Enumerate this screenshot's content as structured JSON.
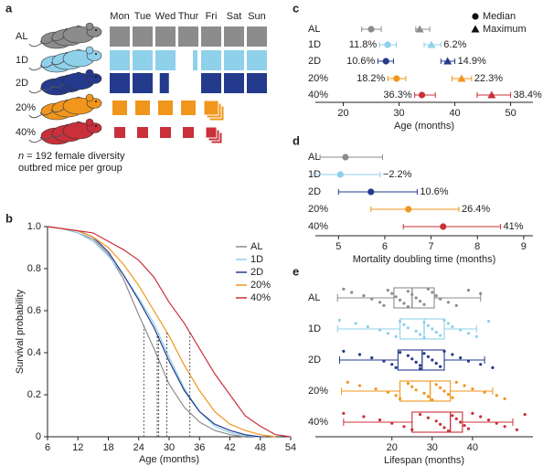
{
  "panel_a": {
    "label": "a",
    "days": [
      "Mon",
      "Tue",
      "Wed",
      "Thur",
      "Fri",
      "Sat",
      "Sun"
    ],
    "groups": [
      {
        "label": "AL",
        "color": "#8c8c8c"
      },
      {
        "label": "1D",
        "color": "#8fd0ea"
      },
      {
        "label": "2D",
        "color": "#243a8c"
      },
      {
        "label": "20%",
        "color": "#f0961c"
      },
      {
        "label": "40%",
        "color": "#c9303a"
      }
    ],
    "note_var": "n",
    "note_rest": " = 192 female diversity",
    "note_line2": "outbred mice per group"
  },
  "chart_data": [
    {
      "panel_label": "b",
      "type": "line",
      "xlabel": "Age (months)",
      "ylabel": "Survival probability",
      "x": [
        6,
        9,
        12,
        15,
        18,
        21,
        24,
        27,
        30,
        33,
        36,
        39,
        42,
        45,
        48,
        51,
        54
      ],
      "xlim": [
        6,
        54
      ],
      "xticks": [
        6,
        12,
        18,
        24,
        30,
        36,
        42,
        48,
        54
      ],
      "ylim": [
        0,
        1
      ],
      "yticks": [
        0,
        0.2,
        0.4,
        0.6,
        0.8,
        {
          "value": 1,
          "label": "1.0"
        }
      ],
      "series": [
        {
          "name": "AL",
          "color": "#8c8c8c",
          "values": [
            1,
            0.99,
            0.97,
            0.94,
            0.87,
            0.75,
            0.58,
            0.42,
            0.25,
            0.14,
            0.07,
            0.03,
            0.01,
            0,
            null,
            null,
            null
          ]
        },
        {
          "name": "1D",
          "color": "#8fd0ea",
          "values": [
            1,
            0.99,
            0.97,
            0.93,
            0.86,
            0.77,
            0.66,
            0.54,
            0.38,
            0.23,
            0.12,
            0.05,
            0.02,
            0.005,
            0,
            null,
            null
          ]
        },
        {
          "name": "2D",
          "color": "#243a8c",
          "values": [
            1,
            0.99,
            0.98,
            0.95,
            0.88,
            0.77,
            0.65,
            0.52,
            0.36,
            0.22,
            0.12,
            0.06,
            0.03,
            0.01,
            0,
            null,
            null
          ]
        },
        {
          "name": "20%",
          "color": "#f0961c",
          "values": [
            1,
            0.99,
            0.98,
            0.95,
            0.9,
            0.82,
            0.72,
            0.6,
            0.48,
            0.34,
            0.22,
            0.12,
            0.06,
            0.03,
            0.01,
            0,
            null
          ]
        },
        {
          "name": "40%",
          "color": "#c9303a",
          "values": [
            1,
            0.99,
            0.98,
            0.97,
            0.93,
            0.89,
            0.84,
            0.76,
            0.64,
            0.54,
            0.42,
            0.3,
            0.2,
            0.1,
            0.05,
            0.01,
            0
          ]
        }
      ]
    },
    {
      "panel_label": "c",
      "type": "dot",
      "xlabel": "Age (months)",
      "categories": [
        "AL",
        "1D",
        "2D",
        "20%",
        "40%"
      ],
      "colors": [
        "#8c8c8c",
        "#8fd0ea",
        "#243a8c",
        "#f0961c",
        "#c9303a"
      ],
      "xlim": [
        15,
        54
      ],
      "xticks": [
        20,
        30,
        40,
        50
      ],
      "series": [
        {
          "name": "Median",
          "marker": "circle",
          "values": [
            25,
            27.95,
            27.65,
            29.55,
            34.1
          ],
          "lower": [
            23.3,
            26.5,
            26.2,
            28,
            32.8
          ],
          "upper": [
            26.8,
            29.5,
            29,
            31.2,
            36.5
          ],
          "annotations": [
            null,
            "11.8%",
            "10.6%",
            "18.2%",
            "36.3%"
          ]
        },
        {
          "name": "Maximum",
          "marker": "triangle",
          "values": [
            33.7,
            35.8,
            38.7,
            41.2,
            46.6
          ],
          "lower": [
            33,
            34.5,
            37.5,
            39.5,
            44
          ],
          "upper": [
            35.5,
            37.5,
            40,
            43,
            50
          ],
          "annotations": [
            null,
            "6.2%",
            "14.9%",
            "22.3%",
            "38.4%"
          ]
        }
      ]
    },
    {
      "panel_label": "d",
      "type": "dot",
      "xlabel": "Mortality doubling time (months)",
      "categories": [
        "AL",
        "1D",
        "2D",
        "20%",
        "40%"
      ],
      "colors": [
        "#8c8c8c",
        "#8fd0ea",
        "#243a8c",
        "#f0961c",
        "#c9303a"
      ],
      "xlim": [
        4.5,
        9.2
      ],
      "xticks": [
        5,
        6,
        7,
        8,
        9
      ],
      "values": [
        5.15,
        5.04,
        5.7,
        6.51,
        7.26
      ],
      "lower": [
        4.6,
        4.45,
        5.0,
        5.7,
        6.4
      ],
      "upper": [
        5.95,
        5.9,
        6.7,
        7.6,
        8.5
      ],
      "annotations": [
        null,
        "−2.2%",
        "10.6%",
        "26.4%",
        "41%"
      ]
    },
    {
      "panel_label": "e",
      "type": "box",
      "xlabel": "Lifespan (months)",
      "categories": [
        "AL",
        "1D",
        "2D",
        "20%",
        "40%"
      ],
      "colors": [
        "#8c8c8c",
        "#8fd0ea",
        "#243a8c",
        "#f0961c",
        "#c9303a"
      ],
      "xlim": [
        1,
        55
      ],
      "xticks": [
        20,
        30,
        40
      ],
      "whislo": [
        6.5,
        6.5,
        7,
        7.5,
        8
      ],
      "q1": [
        20.5,
        22,
        21.5,
        22,
        25
      ],
      "med": [
        25,
        28,
        27.5,
        29.5,
        34.5
      ],
      "q3": [
        30.5,
        33,
        33,
        34.5,
        37.5
      ],
      "whishi": [
        42,
        41,
        43,
        45,
        50
      ],
      "points": [
        [
          8,
          10,
          13,
          15,
          17,
          18,
          19,
          20,
          21,
          22,
          23,
          24,
          24,
          25,
          26,
          27,
          28,
          29,
          30,
          31,
          32,
          34,
          36,
          39,
          42
        ],
        [
          7,
          11,
          14,
          17,
          19,
          21,
          22,
          23,
          24,
          26,
          27,
          28,
          28,
          29,
          30,
          31,
          32,
          33,
          34,
          35,
          37,
          39,
          41,
          44
        ],
        [
          8,
          12,
          15,
          18,
          20,
          21,
          22,
          24,
          25,
          26,
          27,
          27,
          28,
          29,
          30,
          31,
          32,
          33,
          35,
          37,
          39,
          42,
          45
        ],
        [
          9,
          12,
          16,
          19,
          21,
          22,
          24,
          25,
          26,
          28,
          29,
          30,
          31,
          32,
          33,
          34,
          35,
          36,
          38,
          40,
          43,
          46,
          48
        ],
        [
          8,
          13,
          17,
          20,
          23,
          25,
          27,
          29,
          31,
          32,
          33,
          34,
          35,
          36,
          37,
          38,
          39,
          40,
          42,
          44,
          46,
          48,
          51,
          53
        ]
      ]
    }
  ]
}
